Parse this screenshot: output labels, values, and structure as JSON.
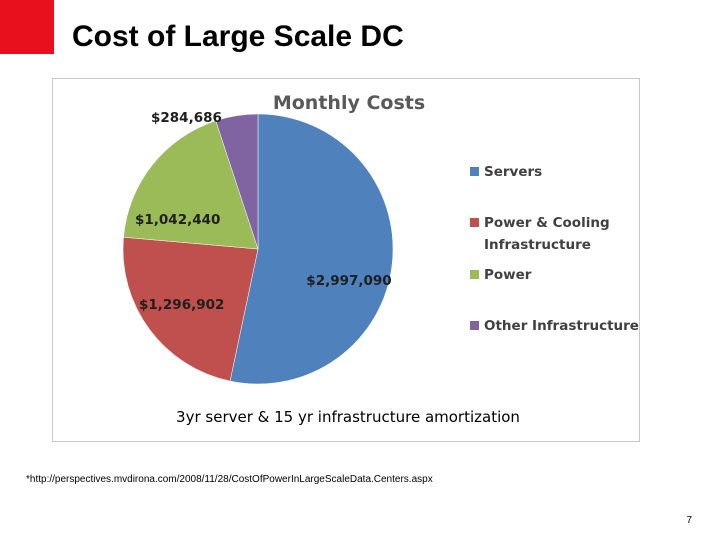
{
  "slide": {
    "title": "Cost of Large Scale DC",
    "footnote": "*http://perspectives.mvdirona.com/2008/11/28/CostOfPowerInLargeScaleData.Centers.aspx",
    "page_number": "7",
    "accent_color": "#e8101c"
  },
  "chart_data": {
    "type": "pie",
    "title": "Monthly Costs",
    "subtitle": "3yr server & 15 yr infrastructure amortization",
    "legend_position": "right",
    "start_angle_deg": 0,
    "direction": "clockwise",
    "slices": [
      {
        "name": "Servers",
        "legend_label": [
          "Servers"
        ],
        "value": 2997090,
        "label": "$2,997,090",
        "color": "#4f81bd"
      },
      {
        "name": "Power & Cooling Infrastructure",
        "legend_label": [
          "Power & Cooling",
          "Infrastructure"
        ],
        "value": 1296902,
        "label": "$1,296,902",
        "color": "#c0504d"
      },
      {
        "name": "Power",
        "legend_label": [
          "Power"
        ],
        "value": 1042440,
        "label": "$1,042,440",
        "color": "#9bbb59"
      },
      {
        "name": "Other Infrastructure",
        "legend_label": [
          "Other Infrastructure"
        ],
        "value": 284686,
        "label": "$284,686",
        "color": "#8064a2"
      }
    ]
  }
}
